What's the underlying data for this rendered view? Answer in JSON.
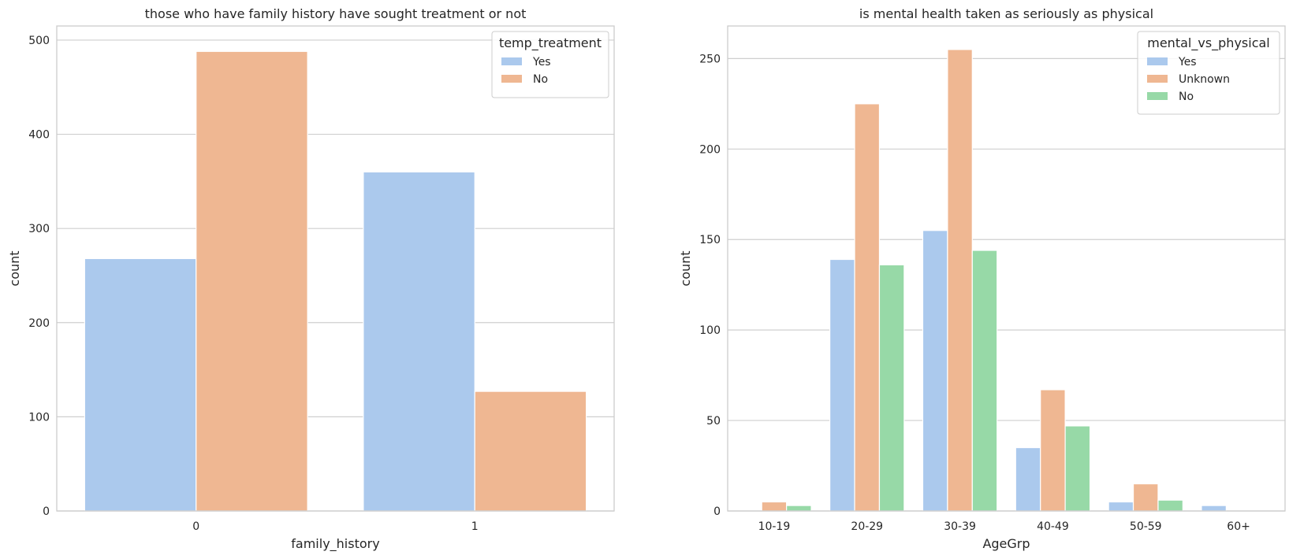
{
  "chart_data": [
    {
      "type": "bar",
      "title": "those who have family history have sought treatment or not",
      "xlabel": "family_history",
      "ylabel": "count",
      "categories": [
        "0",
        "1"
      ],
      "yticks": [
        0,
        100,
        200,
        300,
        400,
        500
      ],
      "ylim": [
        0,
        515
      ],
      "grid": true,
      "legend": {
        "title": "temp_treatment",
        "placement": "top-right"
      },
      "series": [
        {
          "name": "Yes",
          "color": "#abc9ed",
          "values": [
            268,
            360
          ]
        },
        {
          "name": "No",
          "color": "#efb792",
          "values": [
            488,
            127
          ]
        }
      ]
    },
    {
      "type": "bar",
      "title": "is mental health taken as seriously as physical",
      "xlabel": "AgeGrp",
      "ylabel": "count",
      "categories": [
        "10-19",
        "20-29",
        "30-39",
        "40-49",
        "50-59",
        "60+"
      ],
      "yticks": [
        0,
        50,
        100,
        150,
        200,
        250
      ],
      "ylim": [
        0,
        268
      ],
      "grid": true,
      "legend": {
        "title": "mental_vs_physical",
        "placement": "top-right"
      },
      "series": [
        {
          "name": "Yes",
          "color": "#abc9ed",
          "values": [
            0,
            139,
            155,
            35,
            5,
            3
          ]
        },
        {
          "name": "Unknown",
          "color": "#efb792",
          "values": [
            5,
            225,
            255,
            67,
            15,
            0
          ]
        },
        {
          "name": "No",
          "color": "#97d9a7",
          "values": [
            3,
            136,
            144,
            47,
            6,
            0
          ]
        }
      ]
    }
  ]
}
